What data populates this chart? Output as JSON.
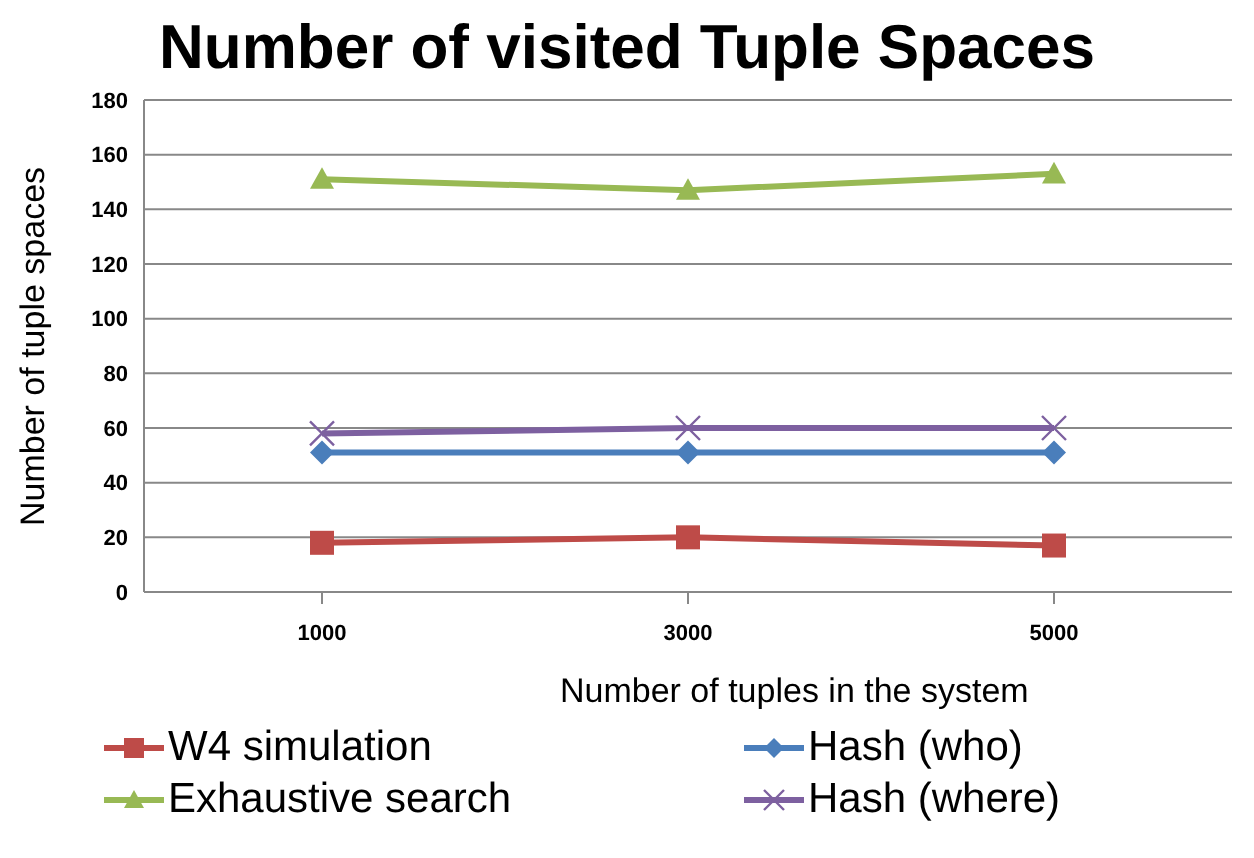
{
  "chart_data": {
    "type": "line",
    "title": "Number of visited Tuple Spaces",
    "xlabel": "Number of tuples in the system",
    "ylabel": "Number of tuple spaces",
    "categories": [
      "1000",
      "3000",
      "5000"
    ],
    "series": [
      {
        "name": "W4 simulation",
        "color": "#be4b48",
        "values": [
          18,
          20,
          17
        ],
        "marker": "square"
      },
      {
        "name": "Hash (who)",
        "color": "#4a7ebb",
        "values": [
          51,
          51,
          51
        ],
        "marker": "diamond"
      },
      {
        "name": "Exhaustive search",
        "color": "#98b954",
        "values": [
          151,
          147,
          153
        ],
        "marker": "triangle"
      },
      {
        "name": "Hash (where)",
        "color": "#7d60a0",
        "values": [
          58,
          60,
          60
        ],
        "marker": "cross"
      }
    ],
    "ylim": [
      0,
      180
    ],
    "yticks": [
      0,
      20,
      40,
      60,
      80,
      100,
      120,
      140,
      160,
      180
    ],
    "grid": "y",
    "legend": "bottom"
  }
}
